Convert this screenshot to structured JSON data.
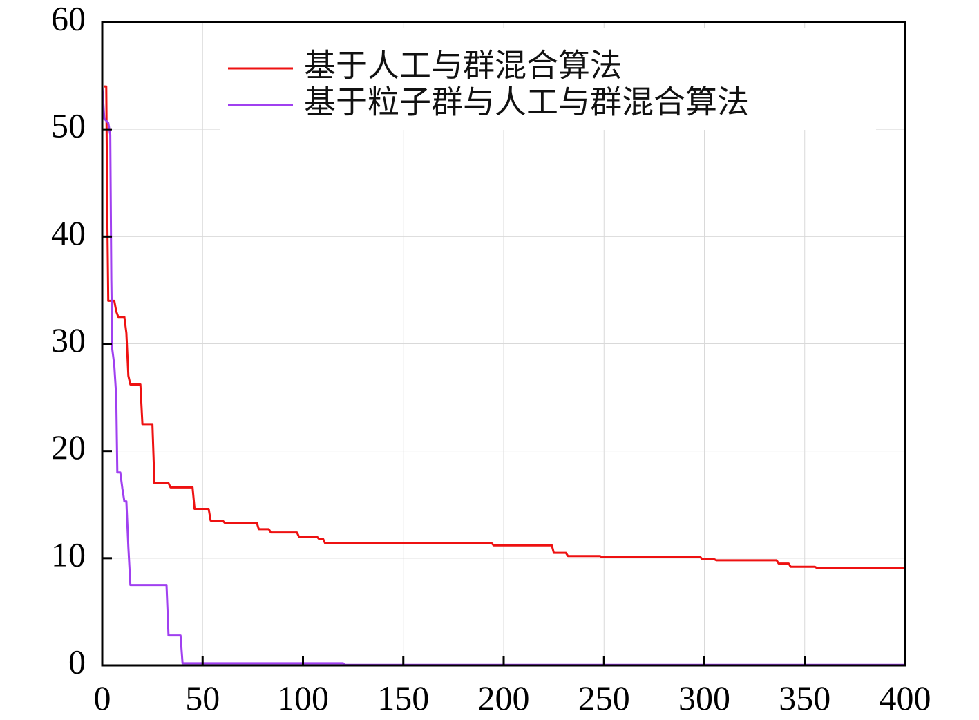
{
  "chart_data": {
    "type": "line",
    "xlim": [
      0,
      400
    ],
    "ylim": [
      0,
      60
    ],
    "x_ticks": [
      0,
      50,
      100,
      150,
      200,
      250,
      300,
      350,
      400
    ],
    "y_ticks": [
      0,
      10,
      20,
      30,
      40,
      50,
      60
    ],
    "x_tick_labels": [
      "0",
      "50",
      "100",
      "150",
      "200",
      "250",
      "300",
      "350",
      "400"
    ],
    "y_tick_labels": [
      "0",
      "10",
      "20",
      "30",
      "40",
      "50",
      "60"
    ],
    "grid": true,
    "legend_position": "top",
    "series": [
      {
        "name": "基于人工与群混合算法",
        "color": "#ee1111",
        "points": [
          [
            1,
            54
          ],
          [
            2,
            54
          ],
          [
            2.5,
            42
          ],
          [
            3,
            34
          ],
          [
            6,
            34
          ],
          [
            7,
            33
          ],
          [
            8,
            32.5
          ],
          [
            11,
            32.5
          ],
          [
            12,
            31
          ],
          [
            13,
            27
          ],
          [
            14,
            26.2
          ],
          [
            19,
            26.2
          ],
          [
            20,
            22.5
          ],
          [
            25,
            22.5
          ],
          [
            26,
            17
          ],
          [
            33,
            17
          ],
          [
            34,
            16.6
          ],
          [
            45,
            16.6
          ],
          [
            46,
            14.6
          ],
          [
            53,
            14.6
          ],
          [
            54,
            13.5
          ],
          [
            60,
            13.5
          ],
          [
            61,
            13.3
          ],
          [
            77,
            13.3
          ],
          [
            78,
            12.7
          ],
          [
            83,
            12.7
          ],
          [
            84,
            12.4
          ],
          [
            97,
            12.4
          ],
          [
            98,
            12
          ],
          [
            107,
            12
          ],
          [
            108,
            11.8
          ],
          [
            110,
            11.8
          ],
          [
            111,
            11.4
          ],
          [
            194,
            11.4
          ],
          [
            195,
            11.2
          ],
          [
            224,
            11.2
          ],
          [
            225,
            10.5
          ],
          [
            231,
            10.5
          ],
          [
            232,
            10.2
          ],
          [
            248,
            10.2
          ],
          [
            249,
            10.1
          ],
          [
            298,
            10.1
          ],
          [
            299,
            9.9
          ],
          [
            305,
            9.9
          ],
          [
            306,
            9.8
          ],
          [
            336,
            9.8
          ],
          [
            337,
            9.5
          ],
          [
            342,
            9.5
          ],
          [
            343,
            9.2
          ],
          [
            355,
            9.2
          ],
          [
            356,
            9.1
          ],
          [
            400,
            9.1
          ]
        ]
      },
      {
        "name": "基于粒子群与人工与群混合算法",
        "color": "#a040f0",
        "points": [
          [
            0,
            54
          ],
          [
            1,
            51
          ],
          [
            2,
            50.8
          ],
          [
            3,
            50.6
          ],
          [
            4,
            49.5
          ],
          [
            4.5,
            36
          ],
          [
            5,
            29.5
          ],
          [
            6,
            28
          ],
          [
            7,
            25
          ],
          [
            7.5,
            18
          ],
          [
            9,
            18
          ],
          [
            10,
            16.5
          ],
          [
            11,
            15.3
          ],
          [
            12,
            15.3
          ],
          [
            13,
            11
          ],
          [
            14,
            7.5
          ],
          [
            32,
            7.5
          ],
          [
            33,
            2.8
          ],
          [
            39,
            2.8
          ],
          [
            40,
            0.2
          ],
          [
            120,
            0.2
          ],
          [
            121,
            0.05
          ],
          [
            400,
            0.05
          ]
        ]
      }
    ]
  }
}
